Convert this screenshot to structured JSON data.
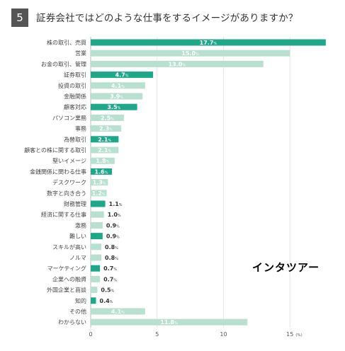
{
  "header": {
    "number": "5",
    "title": "証券会社ではどのような仕事をするイメージがありますか？"
  },
  "watermark": "インタツアー",
  "chart_data": {
    "type": "bar",
    "orientation": "horizontal",
    "title": "証券会社ではどのような仕事をするイメージがありますか？",
    "xlabel": "",
    "ylabel": "",
    "xlim": [
      0,
      17.7
    ],
    "unit": "(%)",
    "xticks": [
      "0",
      "5",
      "10",
      "15"
    ],
    "colors": {
      "dark": "#1fa78a",
      "light": "#b7e0d0"
    },
    "categories": [
      "株の取引、売買",
      "営業",
      "お金の取引、管理",
      "証券取引",
      "投資の取引",
      "金融関係",
      "顧客対応",
      "パソコン業務",
      "事務",
      "為替取引",
      "顧客との株に関する取引",
      "堅いイメージ",
      "金銭関係に関わる仕事",
      "デスクワーク",
      "数字と向き合う",
      "財務管理",
      "経済に関する仕事",
      "激務",
      "難しい",
      "スキルが高い",
      "ノルマ",
      "マーケティング",
      "企業への融資",
      "外国企業と商談",
      "知的",
      "その他",
      "わからない"
    ],
    "values": [
      17.7,
      15.0,
      13.0,
      4.7,
      4.1,
      3.9,
      3.5,
      2.5,
      2.3,
      2.1,
      2.1,
      1.8,
      1.6,
      1.3,
      1.2,
      1.1,
      1.0,
      0.9,
      0.9,
      0.8,
      0.8,
      0.7,
      0.7,
      0.5,
      0.4,
      4.1,
      11.8
    ],
    "labels": [
      "17.7",
      "15.0",
      "13.0",
      "4.7",
      "4.1",
      "3.9",
      "3.5",
      "2.5",
      "2.3",
      "2.1",
      "2.1",
      "1.8",
      "1.6",
      "1.3",
      "1.2",
      "1.1",
      "1.0",
      "0.9",
      "0.9",
      "0.8",
      "0.8",
      "0.7",
      "0.7",
      "0.5",
      "0.4",
      "4.1",
      "11.8"
    ],
    "shades": [
      "dark",
      "light",
      "light",
      "dark",
      "light",
      "light",
      "dark",
      "light",
      "light",
      "dark",
      "light",
      "light",
      "dark",
      "light",
      "light",
      "dark",
      "light",
      "light",
      "dark",
      "light",
      "light",
      "dark",
      "light",
      "light",
      "dark",
      "light",
      "light"
    ],
    "label_inside": [
      true,
      true,
      true,
      true,
      true,
      true,
      true,
      true,
      true,
      true,
      true,
      true,
      true,
      true,
      true,
      false,
      false,
      false,
      false,
      false,
      false,
      false,
      false,
      false,
      false,
      true,
      true
    ]
  }
}
